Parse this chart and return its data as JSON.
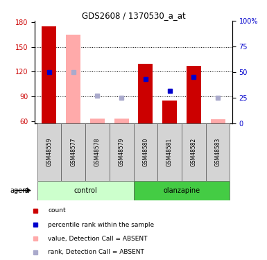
{
  "title": "GDS2608 / 1370530_a_at",
  "samples": [
    "GSM48559",
    "GSM48577",
    "GSM48578",
    "GSM48579",
    "GSM48580",
    "GSM48581",
    "GSM48582",
    "GSM48583"
  ],
  "groups": [
    "control",
    "control",
    "control",
    "control",
    "olanzapine",
    "olanzapine",
    "olanzapine",
    "olanzapine"
  ],
  "detection": [
    "P",
    "A",
    "A",
    "A",
    "P",
    "P",
    "P",
    "A"
  ],
  "count_values": [
    175,
    165,
    63,
    63,
    130,
    85,
    127,
    62
  ],
  "rank_values": [
    50,
    50,
    27,
    25,
    43,
    32,
    45,
    25
  ],
  "ylim_left": [
    57,
    182
  ],
  "ylim_right": [
    0,
    100
  ],
  "yticks_left": [
    60,
    90,
    120,
    150,
    180
  ],
  "yticks_right": [
    0,
    25,
    50,
    75,
    100
  ],
  "bar_width": 0.6,
  "color_bar_present": "#cc0000",
  "color_bar_absent": "#ffaaaa",
  "color_rank_present": "#0000cc",
  "color_rank_absent": "#aaaacc",
  "color_control_bg_light": "#ccffcc",
  "color_control_bg_dark": "#44cc44",
  "color_olanzapine_bg_light": "#ccffcc",
  "color_olanzapine_bg_dark": "#44cc44",
  "group_label_control": "control",
  "group_label_olanzapine": "olanzapine",
  "agent_label": "agent",
  "legend_items": [
    "count",
    "percentile rank within the sample",
    "value, Detection Call = ABSENT",
    "rank, Detection Call = ABSENT"
  ],
  "legend_colors": [
    "#cc0000",
    "#0000cc",
    "#ffaaaa",
    "#aaaacc"
  ],
  "grid_lines": [
    90,
    120,
    150
  ],
  "fig_width": 3.85,
  "fig_height": 3.75,
  "dpi": 100
}
